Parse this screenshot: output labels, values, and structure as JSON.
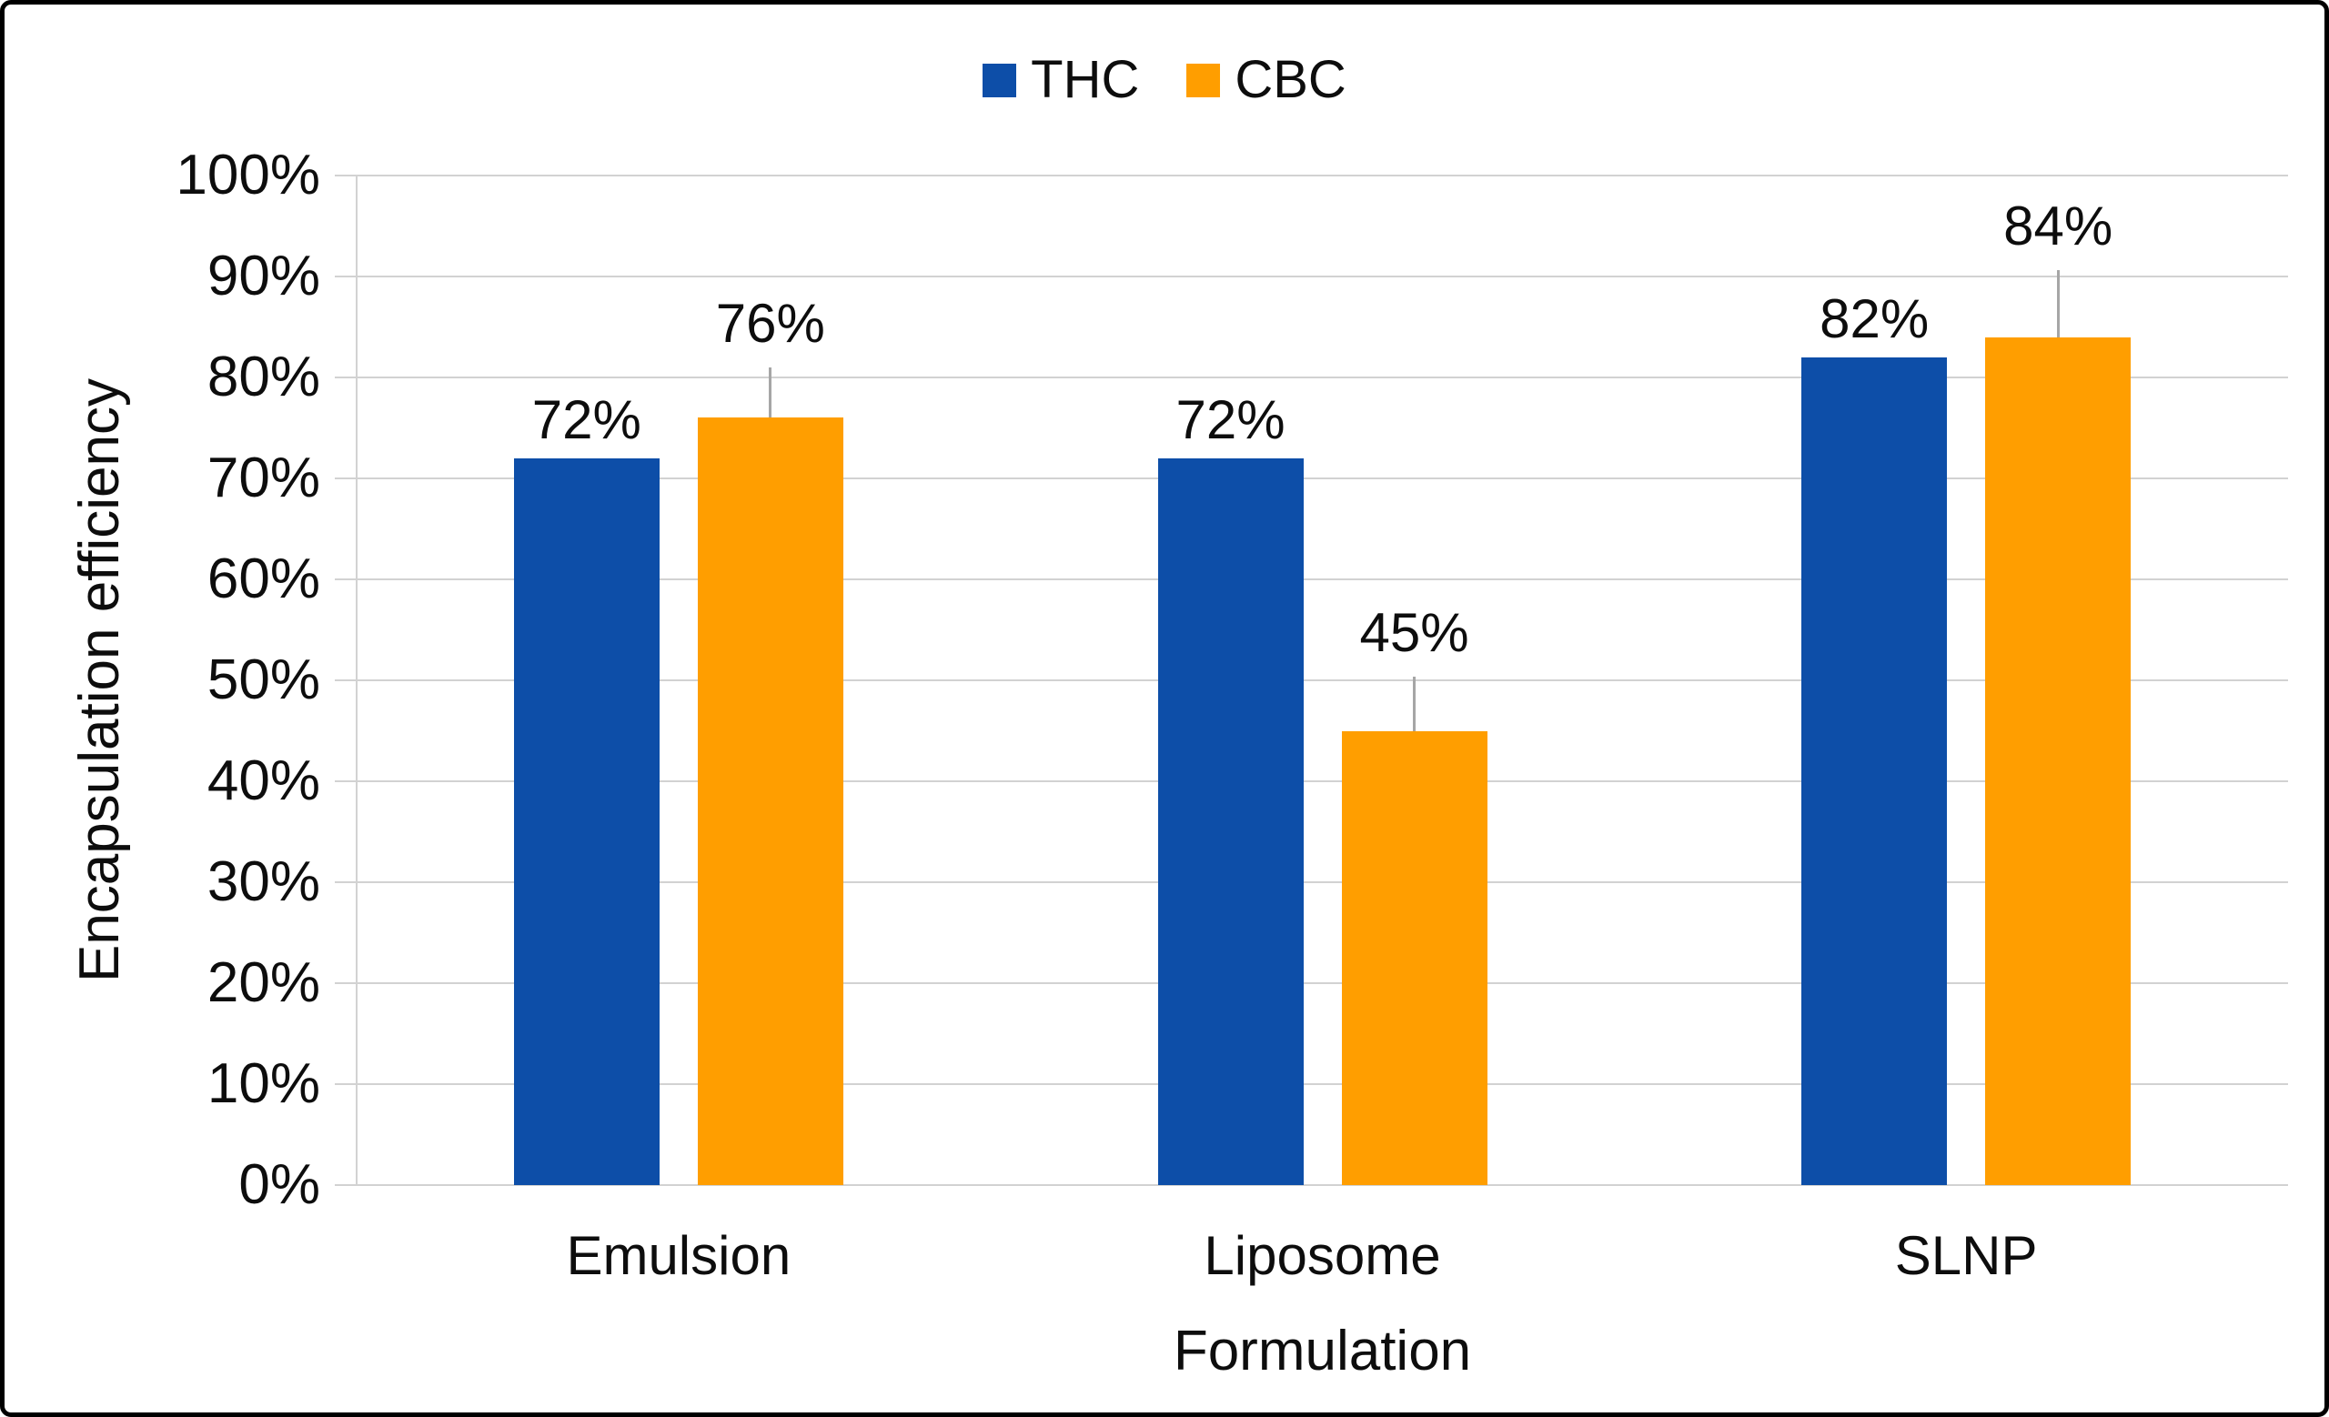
{
  "chart_data": {
    "type": "bar",
    "title": "",
    "categories": [
      "Emulsion",
      "Liposome",
      "SLNP"
    ],
    "series": [
      {
        "name": "THC",
        "color": "#0D4EA8",
        "values": [
          72,
          72,
          82
        ],
        "labels": [
          "72%",
          "72%",
          "82%"
        ]
      },
      {
        "name": "CBC",
        "color": "#FF9E00",
        "values": [
          76,
          45,
          84
        ],
        "labels": [
          "76%",
          "45%",
          "84%"
        ],
        "label_leader_pct": [
          5.0,
          5.4,
          6.6
        ]
      }
    ],
    "xlabel": "Formulation",
    "ylabel": "Encapsulation efficiency",
    "ylim": [
      0,
      100
    ],
    "y_tick_step": 10,
    "y_tick_labels": [
      "0%",
      "10%",
      "20%",
      "30%",
      "40%",
      "50%",
      "60%",
      "70%",
      "80%",
      "90%",
      "100%"
    ],
    "grid": "horizontal-only",
    "legend_position": "top-center",
    "colors": {
      "gridline": "#D2D2D2",
      "leader_line": "#A6A6A6",
      "text": "#0D0D0D",
      "border": "#000000",
      "background": "#FFFFFF"
    }
  }
}
